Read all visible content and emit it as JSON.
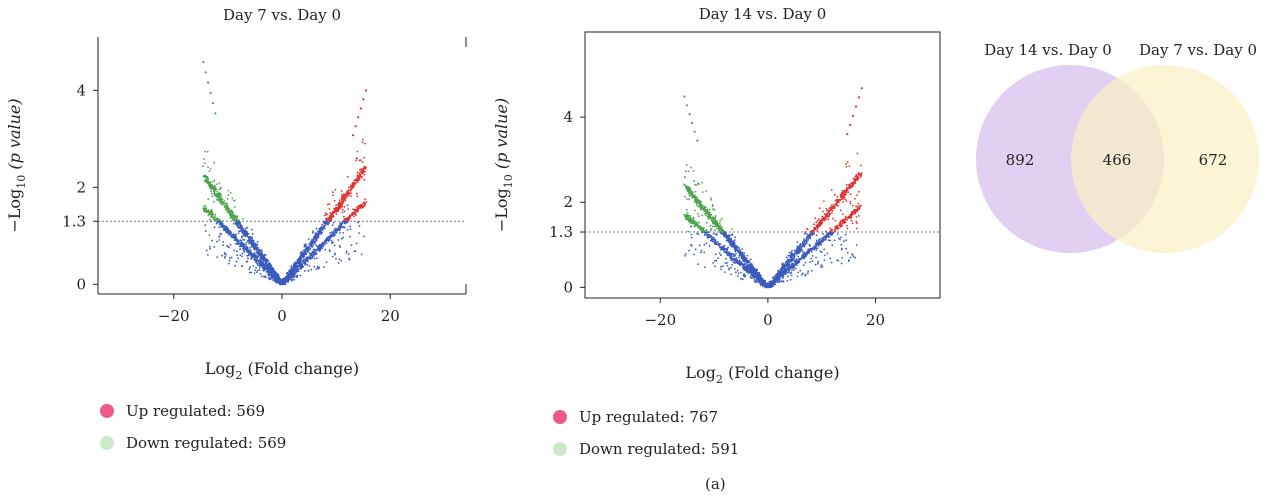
{
  "colors": {
    "up": "#e03030",
    "down": "#4ca34c",
    "ns": "#3a5bbd",
    "legend_up": "#ee5b87",
    "legend_down": "#cfe8cc",
    "venn_left": "#dcc8ef",
    "venn_right": "#fbf1c3"
  },
  "caption": "(a)",
  "chart_data": [
    {
      "type": "scatter",
      "title": "Day 7 vs. Day 0",
      "xlabel_main": "Log",
      "xlabel_sub": "2",
      "xlabel_rest": " (Fold change)",
      "ylabel_pre": "−Log",
      "ylabel_sub": "10",
      "ylabel_post": " (p value)",
      "xlim": [
        -34,
        34
      ],
      "ylim": [
        -0.2,
        5.1
      ],
      "xticks": [
        -20,
        0,
        20
      ],
      "xtick_labels": [
        "−20",
        "0",
        "20"
      ],
      "yticks": [
        0,
        1.3,
        2,
        4
      ],
      "ytick_labels": [
        "0",
        "1.3",
        "2",
        "4"
      ],
      "threshold": 1.3,
      "legend": [
        {
          "label": "Up regulated: 569",
          "color_key": "legend_up"
        },
        {
          "label": "Down regulated: 569",
          "color_key": "legend_down"
        }
      ],
      "counts": {
        "up": 569,
        "down": 569
      },
      "points": {
        "left_extreme": [
          -15,
          4.7
        ],
        "right_extreme": [
          16,
          4.1
        ]
      }
    },
    {
      "type": "scatter",
      "title": "Day 14 vs. Day 0",
      "xlabel_main": "Log",
      "xlabel_sub": "2",
      "xlabel_rest": " (Fold change)",
      "ylabel_pre": "−Log",
      "ylabel_sub": "10",
      "ylabel_post": " (p value)",
      "xlim": [
        -34,
        32
      ],
      "ylim": [
        -0.25,
        6.0
      ],
      "xticks": [
        -20,
        0,
        20
      ],
      "xtick_labels": [
        "−20",
        "0",
        "20"
      ],
      "yticks": [
        0,
        1.3,
        2,
        4
      ],
      "ytick_labels": [
        "0",
        "1.3",
        "2",
        "4"
      ],
      "threshold": 1.3,
      "legend": [
        {
          "label": "Up regulated: 767",
          "color_key": "legend_up"
        },
        {
          "label": "Down regulated: 591",
          "color_key": "legend_down"
        }
      ],
      "counts": {
        "up": 767,
        "down": 591
      },
      "points": {
        "left_extreme": [
          -16,
          4.6
        ],
        "right_extreme": [
          18,
          4.8
        ]
      }
    },
    {
      "type": "venn",
      "sets": [
        {
          "name": "Day 14 vs. Day 0",
          "only": 892,
          "color_key": "venn_left"
        },
        {
          "name": "Day 7 vs. Day 0",
          "only": 672,
          "color_key": "venn_right"
        }
      ],
      "intersection": 466
    }
  ]
}
